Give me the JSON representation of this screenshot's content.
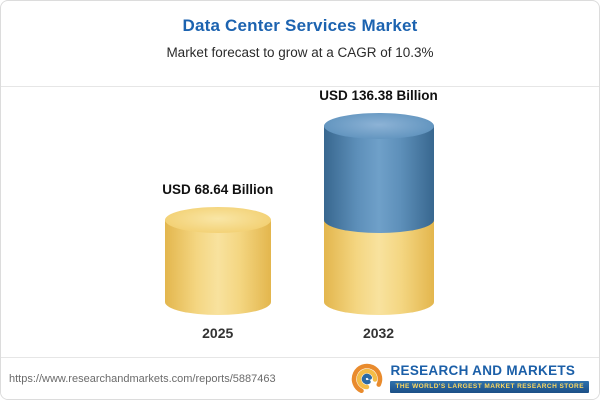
{
  "chart_data": {
    "type": "bar",
    "subtype": "stacked-3d-cylinder",
    "title": "Data Center Services Market",
    "subtitle": "Market forecast to grow at a CAGR of 10.3%",
    "unit": "USD Billion",
    "categories": [
      "2025",
      "2032"
    ],
    "values": [
      68.64,
      136.38
    ],
    "value_labels": [
      "USD 68.64 Billion",
      "USD 136.38 Billion"
    ],
    "cagr_percent": 10.3,
    "legend": "none",
    "grid": false,
    "axes_shown": false,
    "colors": {
      "base_segment": "#F4D277",
      "growth_segment": "#5D8FB9",
      "title_text": "#1C63B0",
      "label_text": "#111111"
    }
  },
  "footer": {
    "url": "https://www.researchandmarkets.com/reports/5887463",
    "brand": "RESEARCH AND MARKETS",
    "tagline": "THE WORLD'S LARGEST MARKET RESEARCH STORE"
  }
}
